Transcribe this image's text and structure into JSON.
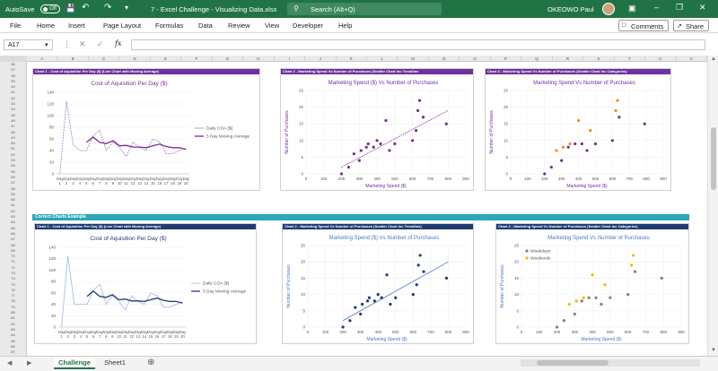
{
  "titlebar": {
    "autosave": "AutoSave",
    "toggle": "Off",
    "filename": "7 - Excel Challenge - Visualizing Data.xlsx",
    "search": "Search (Alt+Q)",
    "user": "OKEOWO Paul"
  },
  "ribbon": {
    "tabs": [
      "File",
      "Home",
      "Insert",
      "Page Layout",
      "Formulas",
      "Data",
      "Review",
      "View",
      "Developer",
      "Help"
    ],
    "comments": "Comments",
    "share": "Share"
  },
  "formula": {
    "namebox": "A17",
    "fx": "fx"
  },
  "columns": [
    "A",
    "B",
    "C",
    "D",
    "E",
    "F",
    "G",
    "H",
    "I",
    "J",
    "K",
    "L",
    "M",
    "N",
    "O",
    "P",
    "Q",
    "R",
    "S",
    "T",
    "U",
    "V"
  ],
  "rows": [
    "36",
    "37",
    "38",
    "39",
    "40",
    "41",
    "42",
    "43",
    "44",
    "45",
    "46",
    "47",
    "48",
    "49",
    "50",
    "51",
    "52",
    "53",
    "54",
    "55",
    "56",
    "57",
    "58",
    "59",
    "60",
    "61",
    "62",
    "63",
    "64",
    "65",
    "66",
    "67",
    "68",
    "69",
    "70",
    "71",
    "72",
    "73",
    "74",
    "75",
    "76",
    "77",
    "78",
    "79",
    "80",
    "81",
    "82",
    "83",
    "84",
    "85",
    "86",
    "87",
    "88",
    "89",
    "90",
    "91",
    "92",
    "93"
  ],
  "banner": "Correct Charts Example",
  "headers": {
    "c1": "Chart 1 - Cost of Aquisition Per Day ($) (Line Chart with Moving Average)",
    "c2": "Chart 2 - Marketing Spend Vs Number of Purchases (Scatter Chart inc Trendline",
    "c3": "Chart 3 - Marketing Spend Vs Number of Purchases (Scatter Chart inc Categories)",
    "d1": "Chart 1 - Cost of Aquisition Per Day ($) (Line Chart with Moving Average)",
    "d2": "Chart 2 - Marketing Spend Vs Number of Purchases (Scatter Chart inc Trendline)",
    "d3": "Chart 3 - Marketing Spend Vs Number of Purchases (Scatter Chart inc Categories)"
  },
  "sheets": {
    "active": "Challenge",
    "other": "Sheet1"
  },
  "chart_data": [
    {
      "type": "line",
      "title": "Cost of Aquisition Per Day ($)",
      "categories": [
        "Day 1",
        "Day 2",
        "Day 3",
        "Day 4",
        "Day 5",
        "Day 6",
        "Day 7",
        "Day 8",
        "Day 9",
        "Day 10",
        "Day 11",
        "Day 12",
        "Day 13",
        "Day 14",
        "Day 15",
        "Day 16",
        "Day 17",
        "Day 18",
        "Day 19",
        "Day 20"
      ],
      "ylim": [
        0,
        140
      ],
      "yticks": [
        0,
        20,
        40,
        60,
        80,
        100,
        120,
        140
      ],
      "series": [
        {
          "name": "Daily COA ($)",
          "values": [
            0,
            125,
            50,
            40,
            40,
            65,
            75,
            40,
            55,
            45,
            30,
            55,
            45,
            40,
            60,
            55,
            35,
            35,
            40,
            45
          ]
        },
        {
          "name": "5 Day Moving Average",
          "values": [
            null,
            null,
            null,
            null,
            54,
            63,
            54,
            52,
            57,
            48,
            49,
            46,
            46,
            45,
            48,
            51,
            47,
            45,
            45,
            42
          ]
        }
      ],
      "legend": "right",
      "colors": {
        "daily": "#a97bc5",
        "ma": "#7b2d8e"
      }
    },
    {
      "type": "scatter",
      "title": "Marketing Spend ($) Vs Number of Purchases",
      "xlabel": "Marketing Spend ($)",
      "ylabel": "Number of Purchases",
      "xlim": [
        0,
        900
      ],
      "ylim": [
        0,
        25
      ],
      "xticks": [
        0,
        100,
        200,
        300,
        400,
        500,
        600,
        700,
        800,
        900
      ],
      "yticks": [
        0,
        5,
        10,
        15,
        20,
        25
      ],
      "points": [
        [
          200,
          0
        ],
        [
          240,
          2
        ],
        [
          270,
          6
        ],
        [
          300,
          4
        ],
        [
          310,
          7
        ],
        [
          340,
          8
        ],
        [
          350,
          9
        ],
        [
          380,
          8
        ],
        [
          400,
          10
        ],
        [
          420,
          9
        ],
        [
          450,
          16
        ],
        [
          470,
          7
        ],
        [
          500,
          9
        ],
        [
          600,
          10
        ],
        [
          620,
          13
        ],
        [
          630,
          19
        ],
        [
          640,
          22
        ],
        [
          660,
          17
        ],
        [
          790,
          15
        ]
      ],
      "trendline": [
        [
          200,
          2
        ],
        [
          800,
          19
        ]
      ],
      "color": "#7b2d8e"
    },
    {
      "type": "scatter",
      "title": "Marketing Spend Vs Number of Purchases",
      "xlabel": "Marketing Spend ($)",
      "ylabel": "Number of Purchases",
      "xlim": [
        0,
        900
      ],
      "ylim": [
        0,
        25
      ],
      "xticks": [
        0,
        100,
        200,
        300,
        400,
        500,
        600,
        700,
        800,
        900
      ],
      "yticks": [
        0,
        5,
        10,
        15,
        20,
        25
      ],
      "series": [
        {
          "name": "Weekdays",
          "points": [
            [
              200,
              0
            ],
            [
              240,
              2
            ],
            [
              300,
              4
            ],
            [
              340,
              8
            ],
            [
              380,
              9
            ],
            [
              420,
              9
            ],
            [
              450,
              7
            ],
            [
              500,
              9
            ],
            [
              600,
              10
            ],
            [
              640,
              17
            ],
            [
              790,
              15
            ]
          ],
          "color": "#7b2d8e"
        },
        {
          "name": "Weekends",
          "points": [
            [
              270,
              7
            ],
            [
              310,
              8
            ],
            [
              350,
              9
            ],
            [
              400,
              16
            ],
            [
              470,
              13
            ],
            [
              620,
              19
            ],
            [
              630,
              22
            ]
          ],
          "color": "#f28c28"
        }
      ]
    },
    {
      "type": "line",
      "title": "Cost of Aquisition Per Day ($)",
      "categories": [
        "Day 1",
        "Day 2",
        "Day 3",
        "Day 4",
        "Day 5",
        "Day 6",
        "Day 7",
        "Day 8",
        "Day 9",
        "Day 10",
        "Day 11",
        "Day 12",
        "Day 13",
        "Day 14",
        "Day 15",
        "Day 16",
        "Day 17",
        "Day 18",
        "Day 19",
        "Day 20"
      ],
      "ylim": [
        0,
        140
      ],
      "yticks": [
        0,
        20,
        40,
        60,
        80,
        100,
        120,
        140
      ],
      "series": [
        {
          "name": "Daily COA ($)",
          "values": [
            0,
            125,
            40,
            40,
            40,
            65,
            75,
            40,
            55,
            45,
            30,
            55,
            45,
            40,
            60,
            55,
            35,
            35,
            40,
            45
          ]
        },
        {
          "name": "5 Day Moving Average",
          "values": [
            null,
            null,
            null,
            null,
            54,
            63,
            54,
            52,
            57,
            48,
            49,
            46,
            46,
            45,
            48,
            51,
            47,
            45,
            45,
            42
          ]
        }
      ],
      "legend": "right",
      "colors": {
        "daily": "#9fb7e6",
        "ma": "#1f3b73"
      }
    },
    {
      "type": "scatter",
      "title": "Marketing Spend ($) Vs Number of Purchases",
      "xlabel": "Marketing Spend ($)",
      "ylabel": "Number of Purchases",
      "xlim": [
        0,
        900
      ],
      "ylim": [
        0,
        25
      ],
      "xticks": [
        0,
        100,
        200,
        300,
        400,
        500,
        600,
        700,
        800,
        900
      ],
      "yticks": [
        0,
        5,
        10,
        15,
        20,
        25
      ],
      "points": [
        [
          200,
          0
        ],
        [
          240,
          2
        ],
        [
          270,
          6
        ],
        [
          300,
          4
        ],
        [
          310,
          7
        ],
        [
          340,
          8
        ],
        [
          350,
          9
        ],
        [
          380,
          8
        ],
        [
          400,
          10
        ],
        [
          420,
          9
        ],
        [
          450,
          16
        ],
        [
          470,
          7
        ],
        [
          500,
          9
        ],
        [
          600,
          10
        ],
        [
          620,
          13
        ],
        [
          630,
          19
        ],
        [
          640,
          22
        ],
        [
          660,
          17
        ],
        [
          790,
          15
        ]
      ],
      "trendline": [
        [
          200,
          2
        ],
        [
          800,
          20
        ]
      ],
      "color": "#1f3b73"
    },
    {
      "type": "scatter",
      "title": "Marketing Spend Vs Number of Purchases",
      "xlabel": "Marketing Spend ($)",
      "ylabel": "Number of Purchases",
      "xlim": [
        0,
        900
      ],
      "ylim": [
        0,
        25
      ],
      "xticks": [
        0,
        100,
        200,
        300,
        400,
        500,
        600,
        700,
        800,
        900
      ],
      "yticks": [
        0,
        5,
        10,
        15,
        20,
        25
      ],
      "series": [
        {
          "name": "Weekdays",
          "points": [
            [
              200,
              0
            ],
            [
              240,
              2
            ],
            [
              300,
              4
            ],
            [
              340,
              8
            ],
            [
              380,
              9
            ],
            [
              420,
              9
            ],
            [
              450,
              7
            ],
            [
              500,
              9
            ],
            [
              600,
              10
            ],
            [
              640,
              17
            ],
            [
              790,
              15
            ]
          ],
          "color": "#7f7f7f"
        },
        {
          "name": "Weekends",
          "points": [
            [
              270,
              7
            ],
            [
              310,
              8
            ],
            [
              350,
              9
            ],
            [
              400,
              16
            ],
            [
              470,
              13
            ],
            [
              620,
              19
            ],
            [
              630,
              22
            ]
          ],
          "color": "#f2b705"
        }
      ],
      "legend": "top-left"
    }
  ]
}
